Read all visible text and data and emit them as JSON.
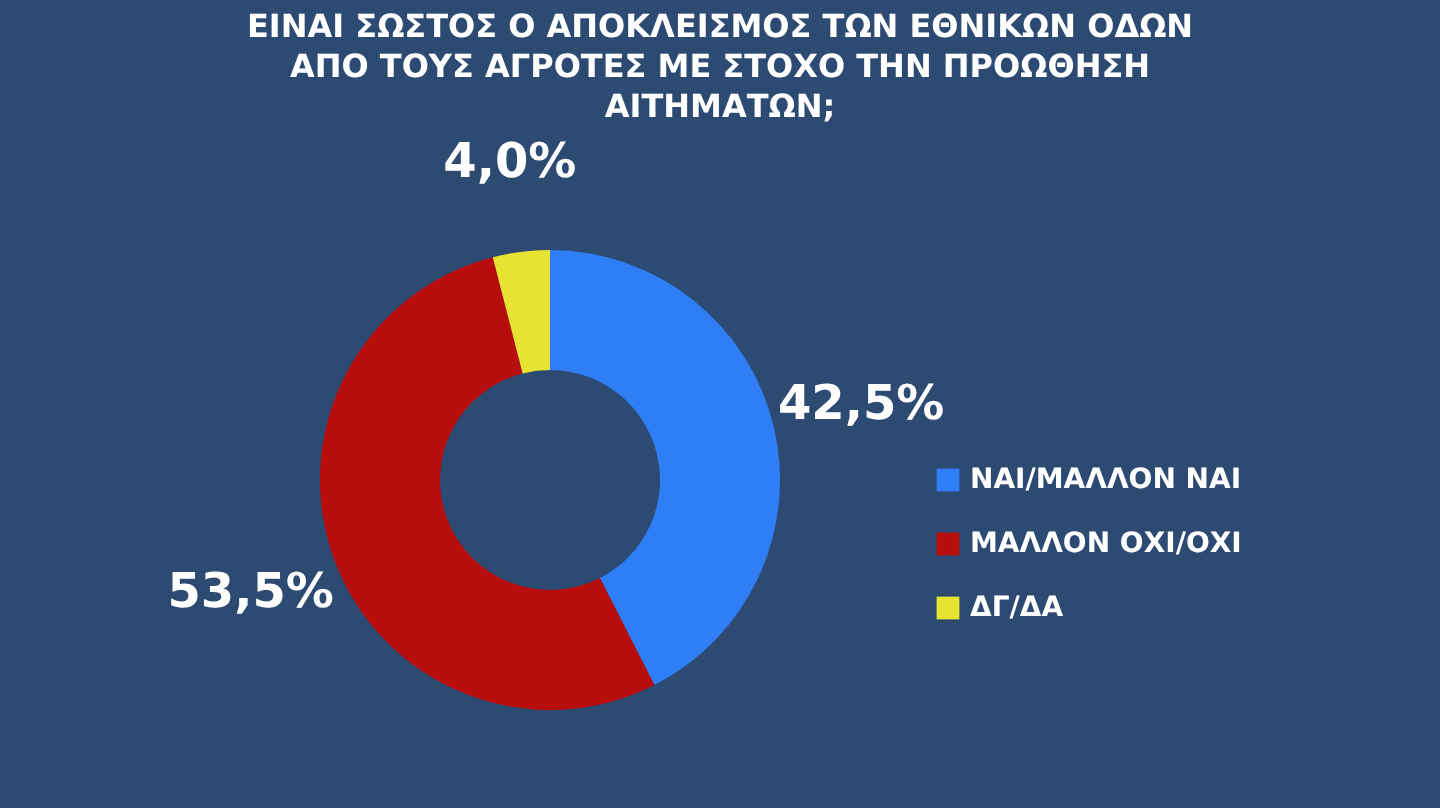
{
  "chart_data": {
    "type": "donut",
    "title": "ΕΙΝΑΙ ΣΩΣΤΟΣ Ο ΑΠΟΚΛΕΙΣΜΟΣ ΤΩΝ ΕΘΝΙΚΩΝ ΟΔΩΝ ΑΠΟ ΤΟΥΣ ΑΓΡΟΤΕΣ ΜΕ ΣΤΟΧΟ ΤΗΝ ΠΡΟΩΘΗΣΗ ΑΙΤΗΜΑΤΩΝ;",
    "categories": [
      "ΝΑΙ/ΜΑΛΛΟΝ ΝΑΙ",
      "ΜΑΛΛΟΝ ΟΧΙ/ΟΧΙ",
      "ΔΓ/ΔΑ"
    ],
    "values": [
      42.5,
      53.5,
      4.0
    ],
    "colors": [
      "#2f7ef5",
      "#b80d0d",
      "#e8e332"
    ],
    "value_labels": [
      "42,5%",
      "53,5%",
      "4,0%"
    ],
    "legend": "right"
  }
}
